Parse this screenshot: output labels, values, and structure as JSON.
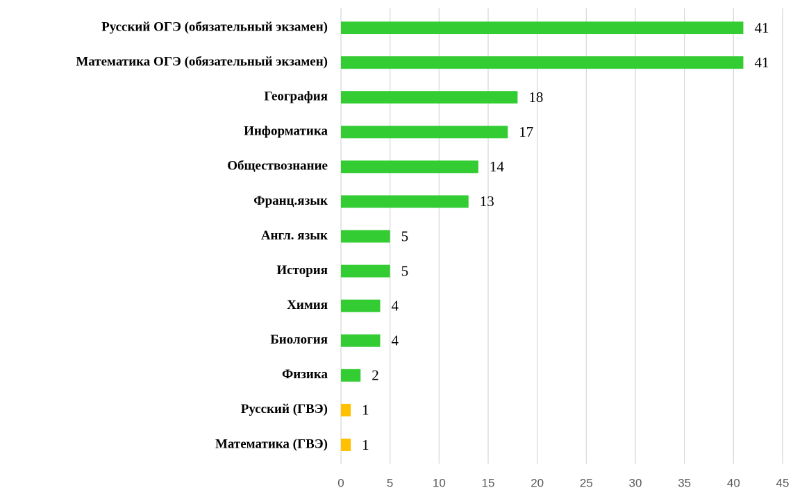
{
  "chart_data": {
    "type": "hbar",
    "categories": [
      "Русский ОГЭ (обязательный экзамен)",
      "Математика ОГЭ (обязательный экзамен)",
      "География",
      "Информатика",
      "Обществознание",
      "Франц.язык",
      "Англ. язык",
      "История",
      "Химия",
      "Биология",
      "Физика",
      "Русский (ГВЭ)",
      "Математика (ГВЭ)"
    ],
    "values": [
      41,
      41,
      18,
      17,
      14,
      13,
      5,
      5,
      4,
      4,
      2,
      1,
      1
    ],
    "colors": [
      "#33cc33",
      "#33cc33",
      "#33cc33",
      "#33cc33",
      "#33cc33",
      "#33cc33",
      "#33cc33",
      "#33cc33",
      "#33cc33",
      "#33cc33",
      "#33cc33",
      "#ffc000",
      "#ffc000"
    ],
    "xlim": [
      0,
      45
    ],
    "xticks": [
      0,
      5,
      10,
      15,
      20,
      25,
      30,
      35,
      40,
      45
    ],
    "grid": true
  }
}
